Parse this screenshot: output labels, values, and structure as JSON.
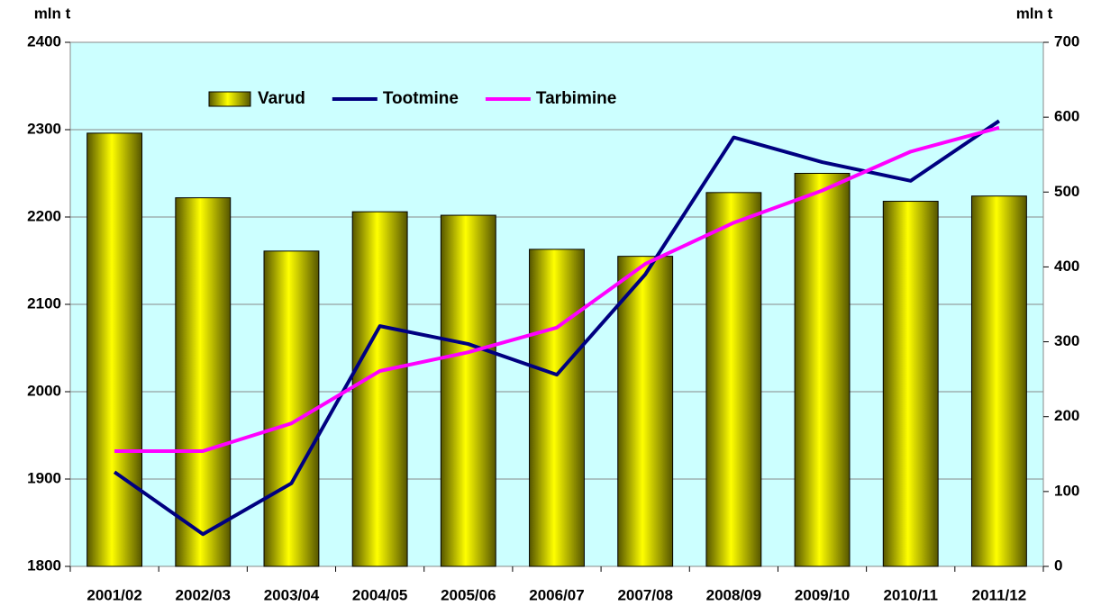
{
  "chart_data": {
    "type": "bar_line",
    "y_label": "mln t",
    "y2_label": "mln t",
    "categories": [
      "2001/02",
      "2002/03",
      "2003/04",
      "2004/05",
      "2005/06",
      "2006/07",
      "2007/08",
      "2008/09",
      "2009/10",
      "2010/11",
      "2011/12"
    ],
    "series": [
      {
        "name": "Varud",
        "color": "#ffff00",
        "kind": "bar",
        "values": [
          2296,
          2222,
          2161,
          2206,
          2202,
          2163,
          2155,
          2228,
          2250,
          2218,
          2224
        ]
      },
      {
        "name": "Tootmine",
        "color": "#000080",
        "kind": "line",
        "axis": "y2",
        "values": [
          126,
          43,
          111,
          321,
          297,
          256,
          390,
          573,
          540,
          515,
          595
        ]
      },
      {
        "name": "Tarbimine",
        "color": "#ff00ff",
        "kind": "line",
        "axis": "y2",
        "values": [
          154,
          154,
          191,
          261,
          286,
          319,
          404,
          459,
          502,
          554,
          586
        ]
      }
    ],
    "ylim": [
      1800,
      2400
    ],
    "yticks": [
      1800,
      1900,
      2000,
      2100,
      2200,
      2300,
      2400
    ],
    "y2lim": [
      0,
      700
    ],
    "y2ticks": [
      0,
      100,
      200,
      300,
      400,
      500,
      600,
      700
    ],
    "grid": true,
    "legend": "top"
  }
}
